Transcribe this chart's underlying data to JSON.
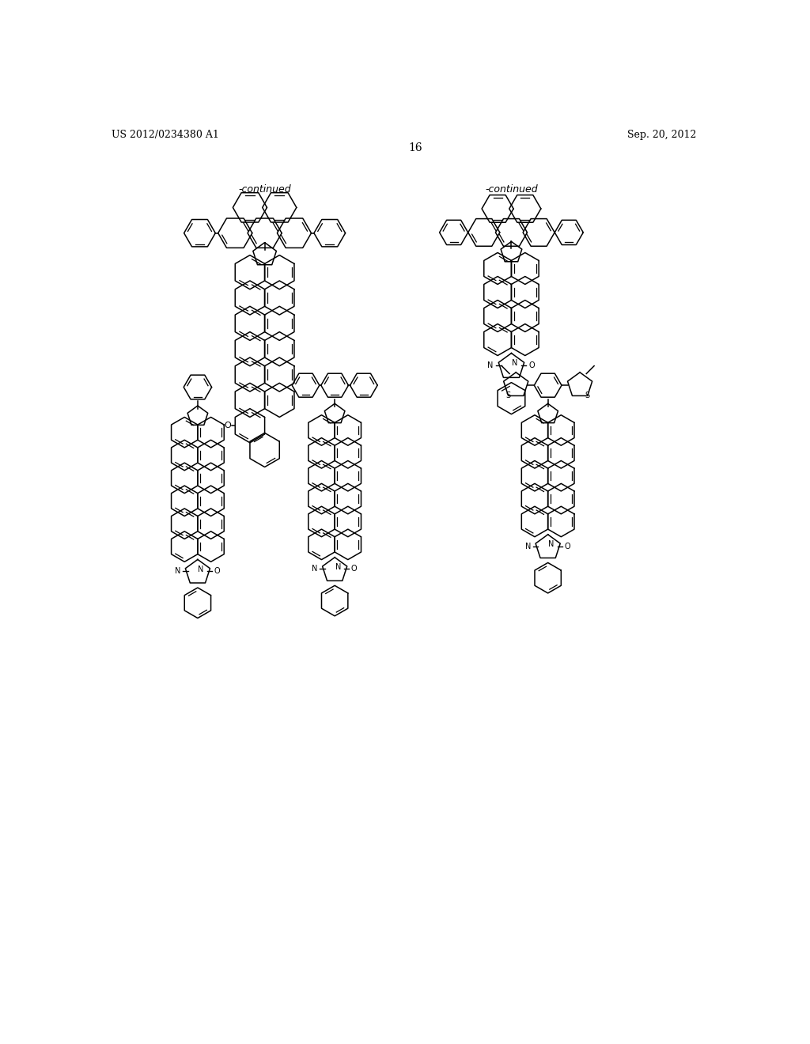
{
  "background_color": "#ffffff",
  "page_number": "16",
  "patent_number": "US 2012/0234380 A1",
  "patent_date": "Sep. 20, 2012",
  "continued_label": "-continued",
  "lw": 1.1
}
